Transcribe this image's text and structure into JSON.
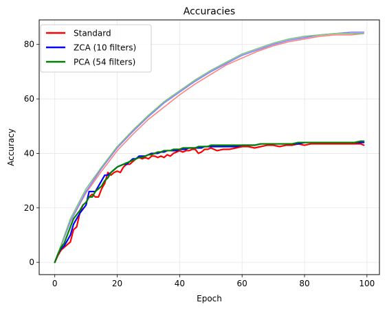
{
  "chart_data": {
    "type": "line",
    "title": "Accuracies",
    "xlabel": "Epoch",
    "ylabel": "Accuracy",
    "xlim": [
      -5,
      104
    ],
    "ylim": [
      -4.5,
      89
    ],
    "xticks": [
      0,
      20,
      40,
      60,
      80,
      100
    ],
    "yticks": [
      0,
      20,
      40,
      60,
      80
    ],
    "grid": true,
    "legend_position": "top-left",
    "series": [
      {
        "name": "Standard",
        "color": "#ff0000",
        "x": [
          0,
          1,
          2,
          3,
          4,
          5,
          6,
          7,
          8,
          9,
          10,
          11,
          12,
          13,
          14,
          15,
          16,
          17,
          18,
          19,
          20,
          21,
          22,
          23,
          24,
          25,
          26,
          27,
          28,
          29,
          30,
          31,
          32,
          33,
          34,
          35,
          36,
          37,
          38,
          39,
          40,
          41,
          42,
          43,
          44,
          45,
          46,
          47,
          48,
          49,
          50,
          52,
          54,
          56,
          58,
          60,
          62,
          64,
          66,
          68,
          70,
          72,
          74,
          76,
          78,
          80,
          82,
          84,
          86,
          88,
          90,
          92,
          94,
          96,
          98,
          99
        ],
        "values": [
          0,
          2.5,
          4.5,
          5.5,
          6.5,
          7.5,
          12,
          13,
          18,
          21,
          22,
          24,
          25,
          24,
          24,
          27,
          29,
          33,
          32,
          33,
          33.5,
          33,
          35,
          36,
          36,
          37,
          38,
          38.5,
          38,
          38.5,
          38,
          39,
          39,
          38.5,
          39,
          38.5,
          39.5,
          39,
          40,
          40.5,
          41,
          40.5,
          41,
          41,
          41.5,
          41.5,
          40,
          40.5,
          41.5,
          41.5,
          42,
          41,
          41.5,
          41.5,
          42,
          42.5,
          42.5,
          42,
          42.5,
          43,
          43,
          42.5,
          43,
          43,
          43.5,
          43,
          43.5,
          43.5,
          43.5,
          43.5,
          43.5,
          43.5,
          43.5,
          43.5,
          43.5,
          43
        ]
      },
      {
        "name": "ZCA (10 filters)",
        "color": "#0000ff",
        "x": [
          0,
          1,
          2,
          3,
          4,
          5,
          6,
          7,
          8,
          9,
          10,
          11,
          12,
          13,
          14,
          15,
          16,
          17,
          18,
          19,
          20,
          21,
          22,
          23,
          24,
          25,
          26,
          27,
          28,
          29,
          30,
          31,
          32,
          33,
          34,
          35,
          36,
          37,
          38,
          39,
          40,
          41,
          42,
          43,
          44,
          45,
          46,
          47,
          48,
          49,
          50,
          52,
          54,
          56,
          58,
          60,
          62,
          64,
          66,
          68,
          70,
          72,
          74,
          76,
          78,
          80,
          82,
          84,
          86,
          88,
          90,
          92,
          94,
          96,
          98,
          99
        ],
        "values": [
          0,
          3,
          5,
          6,
          8,
          10,
          14,
          16,
          18,
          19.5,
          21,
          26,
          26,
          26,
          28,
          30,
          32,
          32,
          33,
          34,
          35,
          35.5,
          36,
          36,
          37,
          38,
          38,
          39,
          39,
          39,
          39.5,
          40,
          40,
          40,
          40.5,
          40.5,
          41,
          41,
          41,
          41,
          41.5,
          41.5,
          41.5,
          42,
          42,
          42,
          42,
          42,
          42.5,
          42.5,
          42.5,
          42.5,
          42.5,
          42.5,
          42.5,
          43,
          43,
          43,
          43.5,
          43.5,
          43.5,
          43.5,
          43.5,
          43.5,
          43.5,
          44,
          44,
          44,
          44,
          44,
          44,
          44,
          44,
          44,
          44,
          44
        ]
      },
      {
        "name": "PCA (54 filters)",
        "color": "#008000",
        "x": [
          0,
          1,
          2,
          3,
          4,
          5,
          6,
          7,
          8,
          9,
          10,
          11,
          12,
          13,
          14,
          15,
          16,
          17,
          18,
          19,
          20,
          21,
          22,
          23,
          24,
          25,
          26,
          27,
          28,
          29,
          30,
          31,
          32,
          33,
          34,
          35,
          36,
          37,
          38,
          39,
          40,
          41,
          42,
          43,
          44,
          45,
          46,
          47,
          48,
          49,
          50,
          52,
          54,
          56,
          58,
          60,
          62,
          64,
          66,
          68,
          70,
          72,
          74,
          76,
          78,
          80,
          82,
          84,
          86,
          88,
          90,
          92,
          94,
          96,
          98,
          99
        ],
        "values": [
          0,
          3,
          5.5,
          7,
          10,
          13,
          16,
          17.5,
          19,
          21,
          22,
          24,
          24,
          26,
          27,
          28,
          30,
          31,
          33,
          34,
          35,
          35.5,
          36,
          36.5,
          37,
          37.5,
          38,
          38.5,
          38.5,
          39,
          39.5,
          39.5,
          40,
          40.5,
          40.5,
          41,
          41,
          41,
          41.5,
          41.5,
          41.5,
          42,
          42,
          42,
          42,
          42,
          42.5,
          42.5,
          42.5,
          42.5,
          43,
          43,
          43,
          43,
          43,
          43,
          43,
          43,
          43.5,
          43.5,
          43.5,
          43.5,
          43.5,
          43.5,
          44,
          44,
          44,
          44,
          44,
          44,
          44,
          44,
          44,
          44,
          44.5,
          44.5
        ]
      },
      {
        "color": "#ff8080",
        "x": [
          0,
          5,
          10,
          15,
          20,
          25,
          30,
          35,
          40,
          45,
          50,
          55,
          60,
          65,
          70,
          75,
          80,
          85,
          90,
          95,
          99
        ],
        "values": [
          0,
          15,
          25.5,
          33.5,
          41,
          47,
          52.5,
          57,
          61.5,
          65.5,
          69,
          72.5,
          75,
          77.5,
          79.5,
          81,
          82,
          83,
          83.5,
          83.5,
          84
        ]
      },
      {
        "color": "#8080ff",
        "x": [
          0,
          5,
          10,
          15,
          20,
          25,
          30,
          35,
          40,
          45,
          50,
          55,
          60,
          65,
          70,
          75,
          80,
          85,
          90,
          95,
          99
        ],
        "values": [
          0,
          15,
          26,
          34.5,
          42,
          48,
          53.5,
          58.5,
          62.5,
          66.5,
          70,
          73,
          76,
          78,
          80,
          81.5,
          82.5,
          83.5,
          84,
          84.5,
          84.5
        ]
      },
      {
        "color": "#80c080",
        "x": [
          0,
          5,
          10,
          15,
          20,
          25,
          30,
          35,
          40,
          45,
          50,
          55,
          60,
          65,
          70,
          75,
          80,
          85,
          90,
          95,
          99
        ],
        "values": [
          0,
          16,
          27,
          35,
          42.5,
          48.5,
          54,
          59,
          63,
          67,
          70.5,
          73.5,
          76.5,
          78.5,
          80.5,
          82,
          83,
          83.5,
          84,
          84,
          84
        ]
      }
    ]
  }
}
